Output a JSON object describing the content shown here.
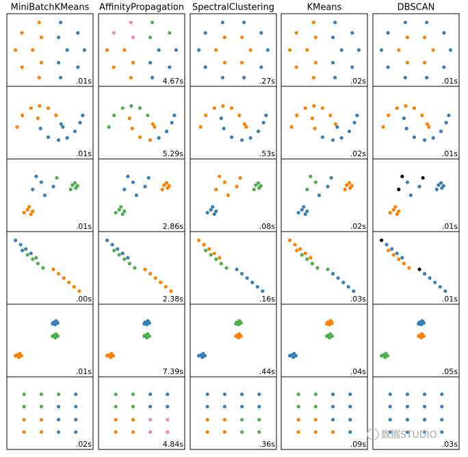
{
  "chart_data": {
    "type": "scatter",
    "titles": [
      "MiniBatchKMeans",
      "AffinityPropagation",
      "SpectralClustering",
      "KMeans",
      "DBSCAN"
    ],
    "xlim": [
      -2.5,
      2.5
    ],
    "ylim": [
      -2.5,
      2.5
    ],
    "colors": [
      "#377eb8",
      "#ff7f00",
      "#4daf4a",
      "#f781bf",
      "#000000"
    ],
    "rows": [
      {
        "x": [
          2,
          1.62,
          0.62,
          -0.62,
          -1.62,
          -2,
          -1.62,
          -0.62,
          0.62,
          1.62,
          1,
          0.5,
          -0.5,
          -1,
          -0.5,
          0.5
        ],
        "y": [
          0,
          1.18,
          1.9,
          1.9,
          1.18,
          0,
          -1.18,
          -1.9,
          -1.9,
          -1.18,
          0,
          0.87,
          0.87,
          0,
          -0.87,
          -0.87
        ],
        "labels": [
          [
            0,
            0,
            0,
            1,
            1,
            1,
            1,
            1,
            0,
            0,
            0,
            0,
            1,
            1,
            1,
            0
          ],
          [
            0,
            2,
            2,
            3,
            3,
            1,
            1,
            1,
            0,
            0,
            0,
            2,
            3,
            1,
            1,
            0
          ],
          [
            0,
            0,
            0,
            0,
            0,
            0,
            0,
            0,
            0,
            0,
            1,
            1,
            1,
            1,
            1,
            1
          ],
          [
            0,
            0,
            0,
            1,
            1,
            1,
            1,
            1,
            0,
            0,
            0,
            0,
            1,
            1,
            1,
            0
          ],
          [
            0,
            0,
            0,
            0,
            0,
            0,
            0,
            0,
            0,
            0,
            1,
            1,
            1,
            1,
            1,
            1
          ]
        ],
        "times": [
          ".01s",
          "4.67s",
          ".27s",
          ".02s",
          ".01s"
        ]
      },
      {
        "x": [
          -1.9,
          -1.6,
          -1.1,
          -0.6,
          -0.1,
          0.35,
          0.65,
          0.75,
          -0.7,
          -0.55,
          -0.1,
          0.5,
          1,
          1.45,
          1.75,
          1.9
        ],
        "y": [
          -0.3,
          0.5,
          1,
          1.15,
          1,
          0.5,
          -0.1,
          -0.3,
          0.3,
          -0.4,
          -1,
          -1.2,
          -1.05,
          -0.6,
          0,
          0.5
        ],
        "labels": [
          [
            1,
            1,
            1,
            1,
            1,
            1,
            0,
            0,
            1,
            0,
            0,
            0,
            0,
            0,
            0,
            0
          ],
          [
            2,
            2,
            2,
            2,
            2,
            2,
            1,
            1,
            1,
            1,
            1,
            1,
            0,
            0,
            0,
            0
          ],
          [
            1,
            1,
            1,
            1,
            1,
            1,
            1,
            1,
            0,
            0,
            0,
            0,
            0,
            0,
            0,
            0
          ],
          [
            1,
            1,
            1,
            1,
            1,
            1,
            1,
            0,
            1,
            1,
            0,
            0,
            0,
            0,
            0,
            0
          ],
          [
            1,
            1,
            1,
            1,
            1,
            1,
            1,
            1,
            0,
            0,
            0,
            0,
            0,
            0,
            0,
            0
          ]
        ],
        "times": [
          ".01s",
          "5.29s",
          ".53s",
          ".02s",
          ".01s"
        ]
      },
      {
        "x": [
          -0.5,
          0.2,
          -1,
          -0.3,
          0.4,
          -0.8,
          1.3,
          1.5,
          1.2,
          1.45,
          1.6,
          -1.3,
          -1.1,
          -1.5,
          -1.2,
          -1
        ],
        "y": [
          0.9,
          0.6,
          0.4,
          0,
          1.2,
          1.3,
          0.7,
          0.5,
          0.4,
          0.85,
          0.65,
          -1,
          -1.3,
          -1.2,
          -0.8,
          -1.1
        ],
        "labels": [
          [
            0,
            0,
            0,
            0,
            2,
            0,
            2,
            2,
            2,
            2,
            2,
            1,
            1,
            1,
            1,
            1
          ],
          [
            0,
            0,
            0,
            0,
            0,
            0,
            1,
            1,
            1,
            1,
            1,
            2,
            2,
            2,
            2,
            2
          ],
          [
            1,
            1,
            1,
            1,
            1,
            1,
            2,
            2,
            2,
            2,
            2,
            0,
            0,
            0,
            0,
            0
          ],
          [
            2,
            0,
            2,
            0,
            0,
            2,
            1,
            1,
            1,
            1,
            1,
            0,
            0,
            0,
            0,
            0
          ],
          [
            0,
            0,
            4,
            0,
            4,
            4,
            0,
            0,
            0,
            0,
            0,
            1,
            1,
            1,
            1,
            1
          ]
        ],
        "times": [
          ".01s",
          "2.86s",
          ".08s",
          ".02s",
          ".01s"
        ]
      },
      {
        "x": [
          -2,
          -1.7,
          -1.4,
          -1.1,
          -0.8,
          -1.6,
          -1.3,
          -1,
          -0.7,
          -0.4,
          0.2,
          0.5,
          0.8,
          1.1,
          1.4,
          1.7
        ],
        "y": [
          1.9,
          1.6,
          1.3,
          1,
          0.7,
          1.2,
          0.9,
          0.6,
          0.3,
          0,
          -0.1,
          -0.4,
          -0.7,
          -1,
          -1.3,
          -1.6
        ],
        "labels": [
          [
            0,
            0,
            0,
            0,
            2,
            0,
            2,
            2,
            2,
            2,
            1,
            1,
            1,
            1,
            1,
            1
          ],
          [
            0,
            0,
            0,
            0,
            0,
            2,
            2,
            2,
            2,
            2,
            1,
            1,
            1,
            1,
            1,
            1
          ],
          [
            1,
            1,
            1,
            1,
            1,
            2,
            2,
            2,
            2,
            2,
            0,
            0,
            0,
            0,
            0,
            0
          ],
          [
            1,
            1,
            1,
            1,
            1,
            1,
            2,
            2,
            2,
            2,
            2,
            0,
            0,
            0,
            0,
            0
          ],
          [
            4,
            0,
            0,
            0,
            0,
            1,
            1,
            1,
            1,
            1,
            4,
            0,
            0,
            0,
            0,
            0
          ]
        ],
        "times": [
          ".00s",
          "2.38s",
          ".16s",
          ".03s",
          ".01s"
        ]
      },
      {
        "x": [
          0.2,
          0.35,
          0.45,
          0.3,
          0.15,
          0.4,
          0.2,
          0.35,
          0.45,
          0.3,
          0.15,
          -1.9,
          -1.75,
          -1.65,
          -1.8,
          -2
        ],
        "y": [
          1.25,
          1.35,
          1.2,
          1.1,
          1.15,
          1.3,
          0.35,
          0.45,
          0.3,
          0.2,
          0.3,
          -1,
          -0.9,
          -1.05,
          -1.15,
          -1.05
        ],
        "labels": [
          [
            0,
            0,
            0,
            0,
            0,
            0,
            2,
            2,
            2,
            2,
            2,
            1,
            1,
            1,
            1,
            1
          ],
          [
            0,
            0,
            0,
            0,
            0,
            0,
            2,
            2,
            2,
            2,
            2,
            1,
            1,
            1,
            1,
            1
          ],
          [
            2,
            2,
            2,
            2,
            2,
            2,
            1,
            1,
            1,
            1,
            1,
            0,
            0,
            0,
            0,
            0
          ],
          [
            1,
            1,
            1,
            1,
            1,
            1,
            2,
            2,
            2,
            2,
            2,
            0,
            0,
            0,
            0,
            0
          ],
          [
            0,
            0,
            0,
            0,
            0,
            0,
            1,
            1,
            1,
            1,
            1,
            2,
            2,
            2,
            2,
            2
          ]
        ],
        "times": [
          ".01s",
          "7.39s",
          ".44s",
          ".04s",
          ".05s"
        ]
      },
      {
        "x": [
          -1.5,
          -0.5,
          0.5,
          1.5,
          -1.5,
          -0.5,
          0.5,
          1.5,
          -1.5,
          -0.5,
          0.5,
          1.5,
          -1.5,
          -0.5,
          0.5,
          1.5
        ],
        "y": [
          1.3,
          1.3,
          1.3,
          1.3,
          0.45,
          0.45,
          0.45,
          0.45,
          -0.45,
          -0.45,
          -0.45,
          -0.45,
          -1.3,
          -1.3,
          -1.3,
          -1.3
        ],
        "labels": [
          [
            2,
            2,
            2,
            0,
            2,
            2,
            0,
            0,
            1,
            1,
            0,
            0,
            1,
            1,
            0,
            0
          ],
          [
            2,
            2,
            0,
            0,
            2,
            2,
            0,
            0,
            1,
            1,
            3,
            3,
            1,
            1,
            3,
            3
          ],
          [
            0,
            0,
            0,
            0,
            0,
            0,
            0,
            0,
            1,
            1,
            2,
            2,
            1,
            1,
            2,
            2
          ],
          [
            2,
            2,
            0,
            0,
            2,
            2,
            0,
            0,
            1,
            1,
            0,
            0,
            1,
            1,
            1,
            0
          ],
          [
            0,
            0,
            0,
            0,
            0,
            0,
            0,
            0,
            0,
            0,
            0,
            0,
            0,
            0,
            0,
            0
          ]
        ],
        "times": [
          ".02s",
          "4.84s",
          ".36s",
          ".09s",
          ".03s"
        ]
      }
    ]
  },
  "watermark": "数据STUDIO"
}
